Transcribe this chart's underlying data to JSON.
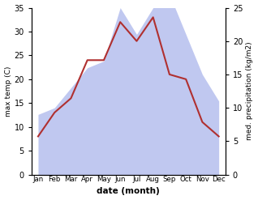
{
  "months": [
    "Jan",
    "Feb",
    "Mar",
    "Apr",
    "May",
    "Jun",
    "Jul",
    "Aug",
    "Sep",
    "Oct",
    "Nov",
    "Dec"
  ],
  "temperature": [
    8,
    13,
    16,
    24,
    24,
    32,
    28,
    33,
    21,
    20,
    11,
    8
  ],
  "precipitation": [
    9,
    10,
    13,
    16,
    17,
    25,
    21,
    25,
    27,
    21,
    15,
    11
  ],
  "temp_color": "#b03030",
  "precip_color_fill": "#c0c8f0",
  "temp_ylim": [
    0,
    35
  ],
  "precip_ylim": [
    0,
    25
  ],
  "temp_yticks": [
    0,
    5,
    10,
    15,
    20,
    25,
    30,
    35
  ],
  "precip_yticks": [
    0,
    5,
    10,
    15,
    20,
    25
  ],
  "xlabel": "date (month)",
  "ylabel_left": "max temp (C)",
  "ylabel_right": "med. precipitation (kg/m2)",
  "background_color": "#ffffff"
}
